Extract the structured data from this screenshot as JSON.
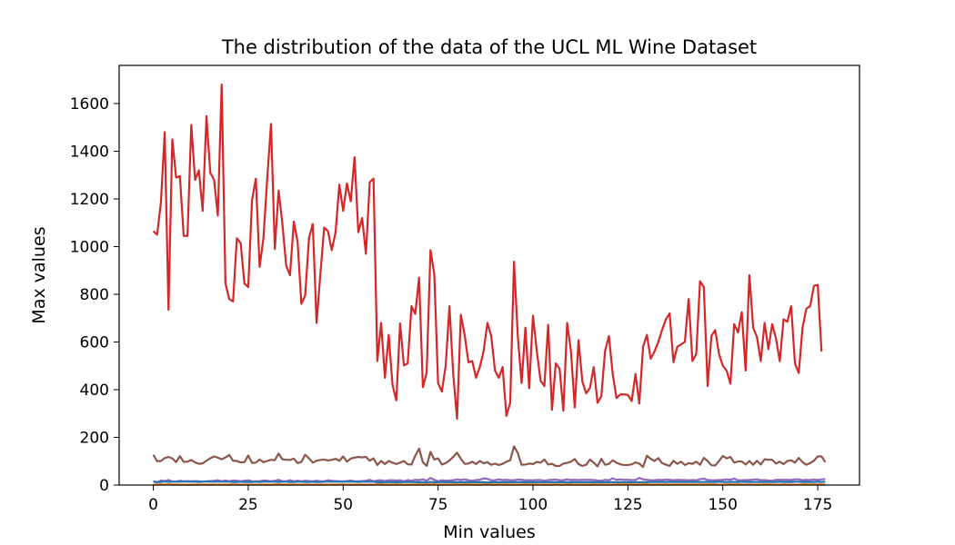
{
  "chart_data": {
    "type": "line",
    "title": "The distribution of the data of the UCL ML Wine Dataset",
    "xlabel": "Min values",
    "ylabel": "Max values",
    "xlim": [
      -9,
      186
    ],
    "ylim": [
      0,
      1760
    ],
    "x_ticks": [
      0,
      25,
      50,
      75,
      100,
      125,
      150,
      175
    ],
    "y_ticks": [
      0,
      200,
      400,
      600,
      800,
      1000,
      1200,
      1400,
      1600
    ],
    "grid": false,
    "legend": "none",
    "x_start": 0,
    "series": [
      {
        "color": "#d62728",
        "values": [
          1065,
          1050,
          1185,
          1480,
          735,
          1450,
          1290,
          1295,
          1045,
          1045,
          1510,
          1280,
          1320,
          1150,
          1547,
          1310,
          1280,
          1130,
          1680,
          845,
          780,
          770,
          1035,
          1015,
          845,
          830,
          1195,
          1285,
          915,
          1035,
          1285,
          1515,
          990,
          1235,
          1095,
          920,
          880,
          1105,
          1020,
          760,
          795,
          1035,
          1095,
          680,
          885,
          1080,
          1065,
          985,
          1060,
          1260,
          1150,
          1265,
          1190,
          1375,
          1060,
          1120,
          970,
          1270,
          1285,
          520,
          680,
          450,
          630,
          420,
          355,
          678,
          502,
          510,
          750,
          718,
          870,
          410,
          472,
          985,
          886,
          428,
          392,
          500,
          750,
          463,
          278,
          714,
          630,
          515,
          520,
          450,
          495,
          562,
          680,
          625,
          480,
          450,
          495,
          290,
          345,
          937,
          625,
          428,
          660,
          406,
          710,
          562,
          438,
          415,
          672,
          315,
          510,
          488,
          312,
          680,
          562,
          325,
          607,
          434,
          385,
          407,
          495,
          345,
          372,
          564,
          625,
          465,
          365,
          380,
          380,
          378,
          352,
          466,
          342,
          580,
          630,
          530,
          560,
          600,
          650,
          695,
          720,
          515,
          580,
          590,
          600,
          780,
          520,
          550,
          855,
          830,
          415,
          625,
          650,
          550,
          500,
          480,
          425,
          675,
          640,
          725,
          480,
          880,
          660,
          620,
          520,
          680,
          570,
          675,
          615,
          520,
          695,
          685,
          750,
          510,
          470,
          660,
          740,
          750,
          835,
          840,
          560
        ]
      },
      {
        "color": "#8c564b",
        "values": [
          127,
          100,
          101,
          113,
          118,
          112,
          96,
          121,
          97,
          98,
          105,
          95,
          89,
          91,
          102,
          112,
          120,
          115,
          108,
          116,
          126,
          102,
          101,
          95,
          96,
          124,
          93,
          94,
          107,
          96,
          101,
          106,
          104,
          132,
          108,
          106,
          105,
          111,
          92,
          97,
          127,
          112,
          94,
          102,
          105,
          107,
          103,
          106,
          110,
          102,
          120,
          98,
          111,
          115,
          118,
          116,
          118,
          102,
          112,
          84,
          101,
          88,
          101,
          94,
          88,
          94,
          101,
          87,
          86,
          123,
          153,
          96,
          80,
          139,
          107,
          112,
          86,
          92,
          103,
          118,
          136,
          110,
          89,
          90,
          98,
          88,
          101,
          91,
          96,
          85,
          90,
          84,
          89,
          98,
          104,
          162,
          134,
          85,
          86,
          90,
          88,
          97,
          94,
          107,
          86,
          89,
          80,
          80,
          90,
          93,
          98,
          109,
          88,
          80,
          85,
          107,
          94,
          78,
          110,
          85,
          89,
          104,
          94,
          87,
          84,
          84,
          87,
          95,
          90,
          76,
          123,
          110,
          101,
          113,
          92,
          86,
          80,
          102,
          89,
          98,
          84,
          92,
          89,
          98,
          85,
          114,
          101,
          83,
          82,
          101,
          122,
          112,
          118,
          94,
          99,
          99,
          86,
          101,
          85,
          102,
          86,
          108,
          106,
          106,
          90,
          98,
          88,
          101,
          104,
          94,
          114,
          96,
          85,
          92,
          102,
          120,
          120,
          96
        ]
      },
      {
        "color": "#9467bd",
        "values": [
          16,
          11,
          19,
          17,
          21,
          15,
          15,
          18,
          16,
          17,
          16,
          17,
          16,
          14,
          16,
          17,
          18,
          20,
          16,
          19,
          16,
          19,
          18,
          16,
          18,
          20,
          16,
          16,
          16,
          19,
          18,
          16,
          18,
          22,
          16,
          16,
          20,
          16,
          18,
          16,
          18,
          17,
          16,
          18,
          16,
          16,
          20,
          18,
          17,
          16,
          16,
          17,
          19,
          16,
          16,
          17,
          18,
          22,
          16,
          19,
          20,
          17,
          20,
          20,
          19,
          20,
          16,
          21,
          18,
          22,
          21,
          24,
          18,
          30,
          22,
          16,
          20,
          18,
          19,
          20,
          24,
          21,
          24,
          20,
          18,
          21,
          22,
          28,
          26,
          20,
          20,
          24,
          21,
          22,
          20,
          20,
          23,
          22,
          20,
          20,
          20,
          21,
          21,
          18,
          21,
          22,
          23,
          20,
          20,
          24,
          21,
          22,
          21,
          22,
          22,
          22,
          21,
          19,
          18,
          22,
          20,
          28,
          22,
          24,
          22,
          22,
          21,
          21,
          30,
          24,
          22,
          20,
          20,
          22,
          21,
          23,
          22,
          20,
          22,
          21,
          21,
          20,
          21,
          20,
          25,
          27,
          21,
          20,
          20,
          21,
          22,
          24,
          22,
          27,
          20,
          20,
          21,
          21,
          23,
          24,
          20,
          21,
          19,
          18,
          22,
          22,
          22,
          22,
          21,
          24,
          24,
          20,
          22,
          21,
          23,
          21,
          24,
          25
        ]
      },
      {
        "color": "#ff7f0e",
        "values": [
          2,
          2,
          3,
          2,
          3,
          2,
          2,
          2,
          2,
          1,
          2,
          2,
          2,
          2,
          2,
          2,
          2,
          2,
          2,
          2,
          2,
          3,
          2,
          2,
          2,
          2,
          2,
          2,
          2,
          2,
          2,
          2,
          3,
          3,
          2,
          2,
          2,
          2,
          2,
          2,
          2,
          2,
          2,
          2,
          2,
          2,
          2,
          2,
          2,
          2,
          3,
          2,
          2,
          2,
          2,
          2,
          2,
          2,
          2,
          3,
          3,
          2,
          2,
          2,
          3,
          2,
          2,
          2,
          2,
          2,
          3,
          2,
          3,
          3,
          3,
          2,
          2,
          2,
          2,
          3,
          3,
          2,
          3,
          3,
          2,
          2,
          2,
          3,
          3,
          3,
          2,
          3,
          2,
          3,
          2,
          2,
          2,
          2,
          3,
          2,
          3,
          2,
          2,
          2,
          2,
          2,
          3,
          2,
          2,
          3,
          3,
          2,
          2,
          2,
          2,
          2,
          3,
          2,
          3,
          2,
          2,
          2,
          3,
          3,
          3,
          3,
          3,
          2,
          3,
          3,
          3,
          2,
          2,
          3,
          2,
          3,
          2,
          2,
          3,
          2,
          3,
          2,
          3,
          2,
          3,
          2,
          3,
          3,
          3,
          2,
          2,
          3,
          3,
          2,
          3,
          3,
          2,
          3,
          2,
          2,
          2,
          3,
          3,
          2,
          2,
          2,
          3,
          2,
          2,
          2,
          2,
          3,
          3,
          2,
          3,
          3,
          3,
          2
        ]
      },
      {
        "color": "#1f77b4",
        "values": [
          14,
          13,
          13,
          15,
          13,
          14,
          14,
          14,
          15,
          14,
          14,
          14,
          13,
          14,
          15,
          14,
          14,
          14,
          14,
          14,
          14,
          13,
          13,
          14,
          13,
          13,
          13,
          14,
          13,
          14,
          14,
          14,
          14,
          13,
          14,
          14,
          13,
          13,
          14,
          14,
          13,
          13,
          14,
          13,
          13,
          14,
          14,
          14,
          14,
          14,
          14,
          14,
          14,
          14,
          13,
          14,
          14,
          14,
          14,
          12,
          12,
          12,
          13,
          12,
          12,
          12,
          13,
          13,
          13,
          12,
          12,
          12,
          11,
          13,
          12,
          12,
          13,
          12,
          12,
          12,
          12,
          12,
          12,
          12,
          12,
          12,
          12,
          12,
          11,
          12,
          12,
          12,
          12,
          12,
          12,
          12,
          12,
          12,
          12,
          12,
          12,
          12,
          12,
          12,
          12,
          12,
          12,
          12,
          12,
          12,
          12,
          12,
          12,
          12,
          12,
          12,
          12,
          12,
          12,
          12,
          12,
          12,
          12,
          12,
          12,
          12,
          12,
          12,
          12,
          12,
          12,
          13,
          13,
          13,
          13,
          13,
          13,
          13,
          13,
          13,
          13,
          13,
          13,
          13,
          13,
          13,
          13,
          13,
          13,
          14,
          13,
          13,
          13,
          13,
          13,
          14,
          13,
          13,
          13,
          13,
          13,
          13,
          13,
          13,
          13,
          14,
          13,
          13,
          13,
          14,
          14,
          13,
          13,
          13,
          13,
          14,
          13,
          14
        ]
      }
    ]
  }
}
